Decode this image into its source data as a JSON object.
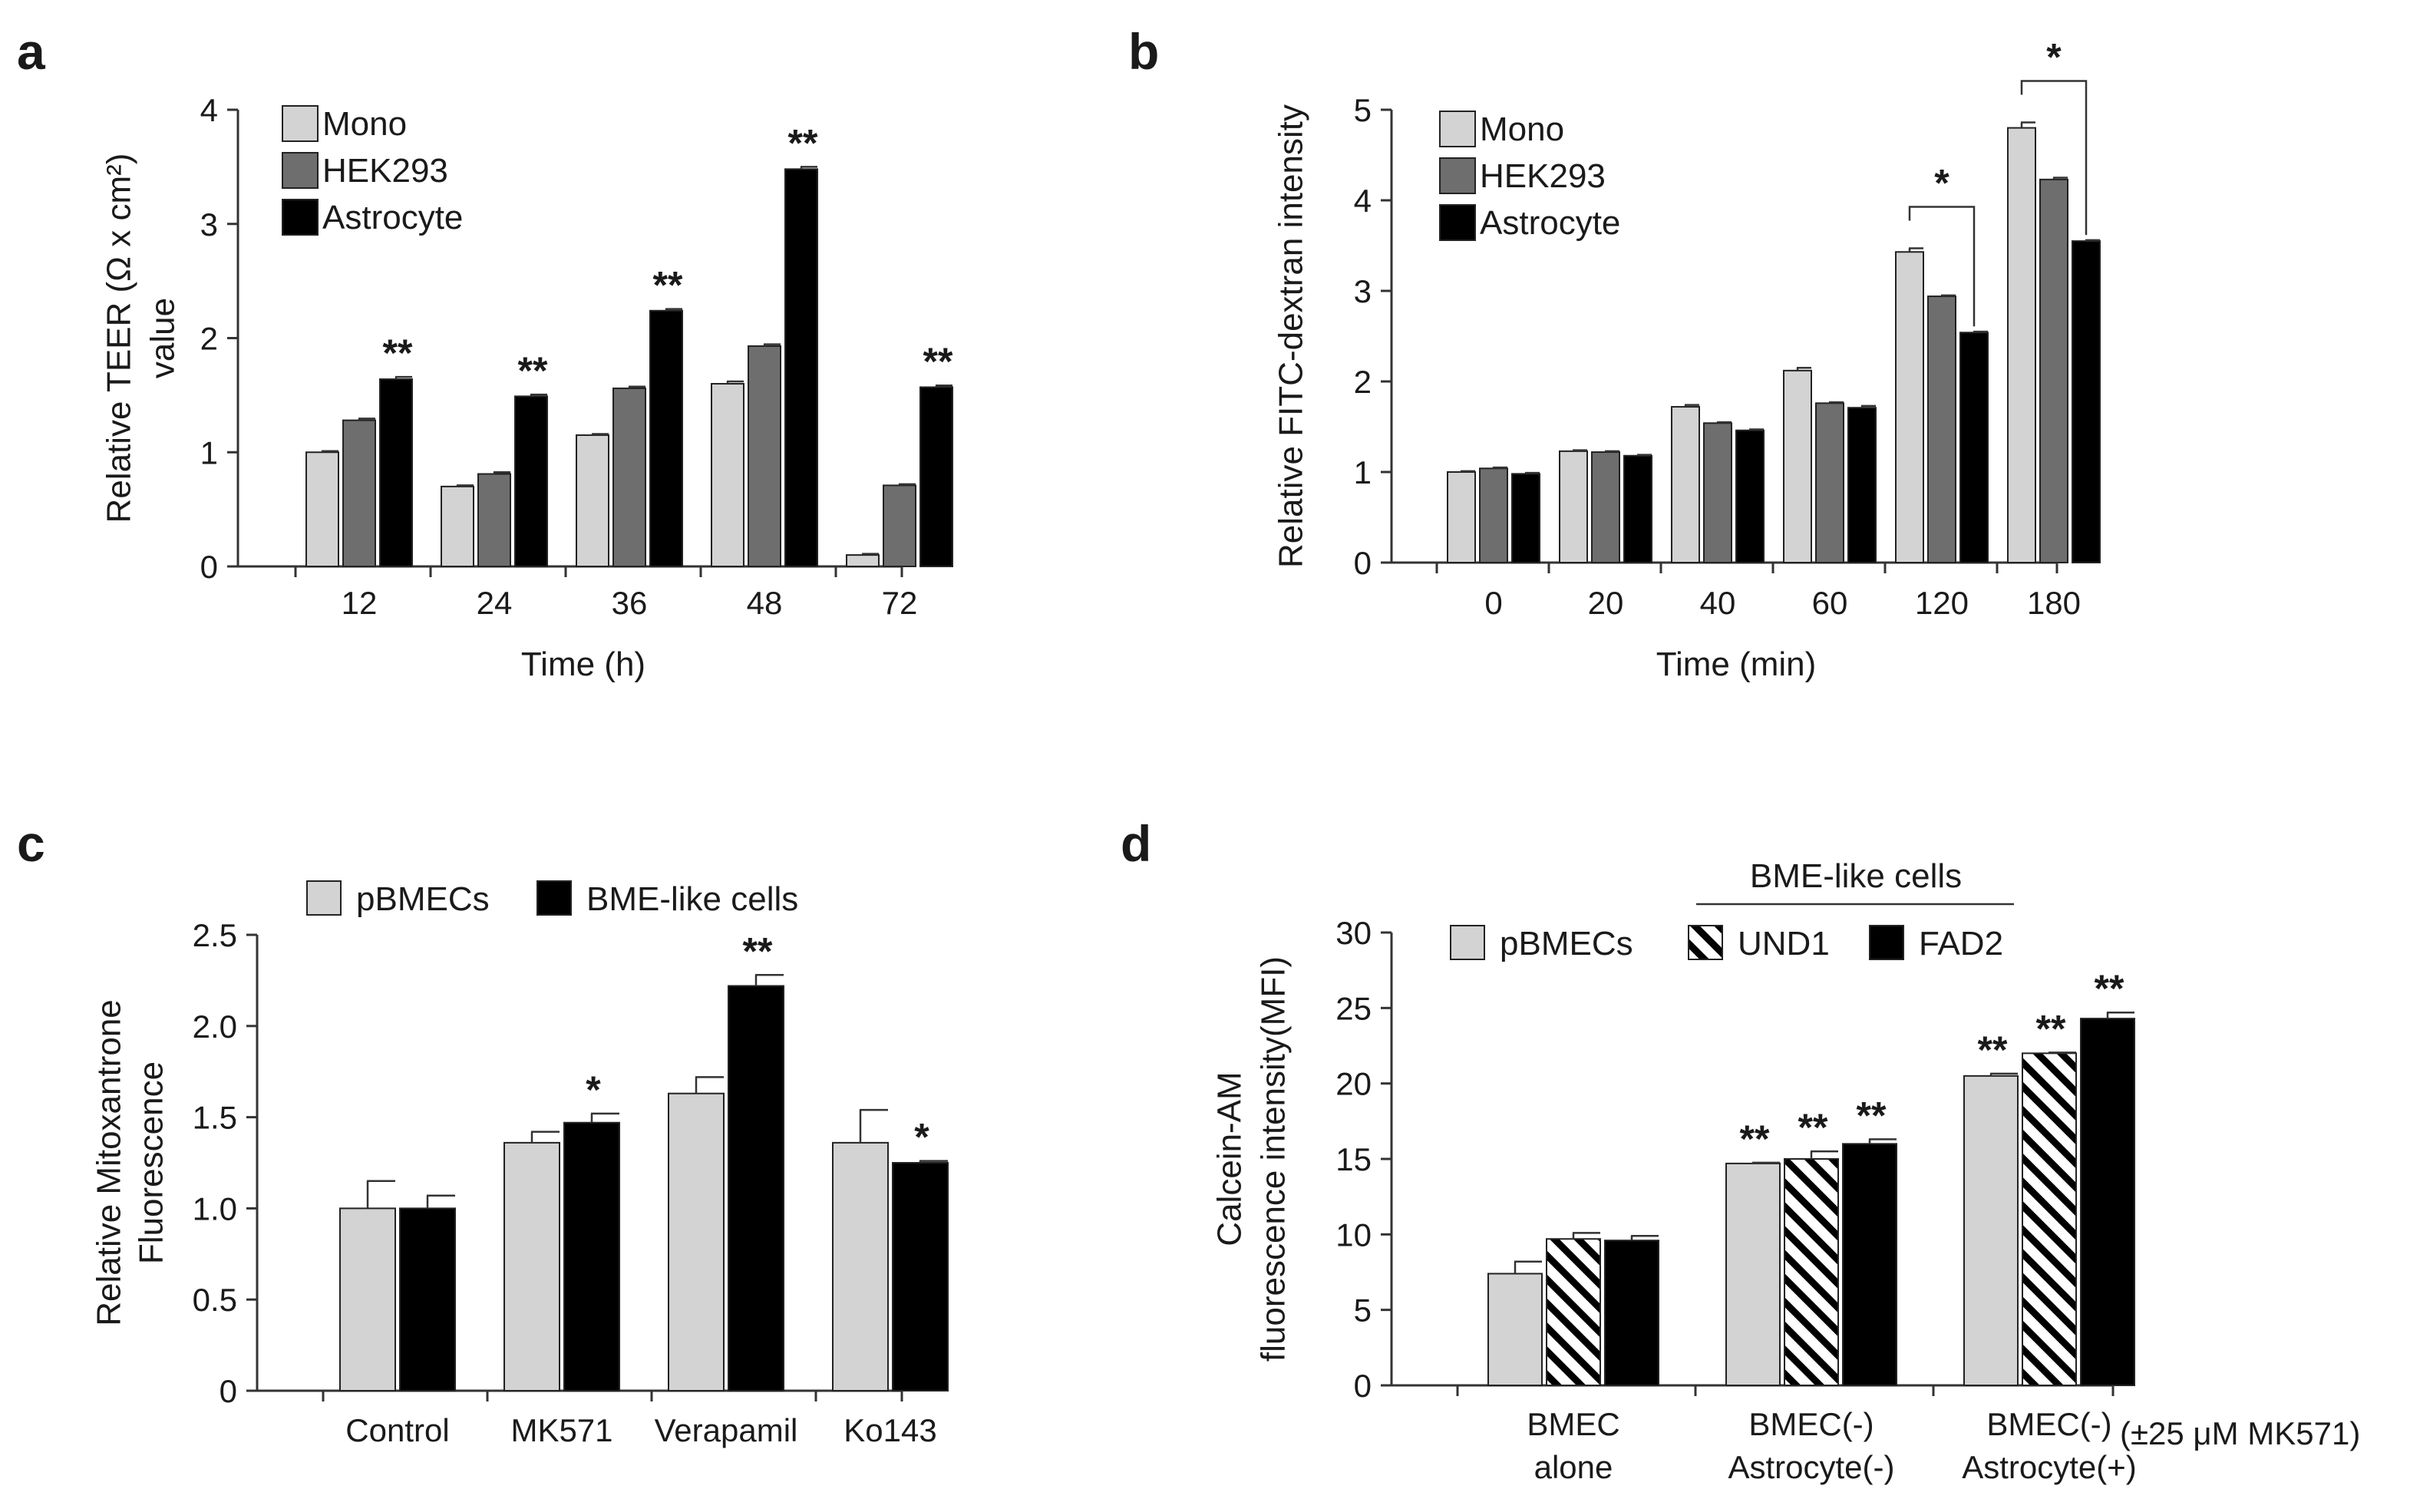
{
  "colors": {
    "mono": "#d3d3d3",
    "hek": "#6e6e6e",
    "astro": "#000000",
    "und1_stripe": "#000000",
    "axis": "#333333"
  },
  "chart_data": [
    {
      "panel": "a",
      "type": "bar",
      "title": "",
      "xlabel": "Time (h)",
      "ylabel_lines": [
        "Relative TEER (Ω x cm²)",
        "value"
      ],
      "ylim": [
        0,
        4
      ],
      "yticks": [
        "0",
        "1",
        "2",
        "3",
        "4"
      ],
      "categories": [
        "12",
        "24",
        "36",
        "48",
        "72"
      ],
      "series": [
        {
          "name": "Mono",
          "values": [
            1.0,
            0.7,
            1.15,
            1.6,
            0.1
          ],
          "errors": [
            0.01,
            0.01,
            0.01,
            0.02,
            0.01
          ]
        },
        {
          "name": "HEK293",
          "values": [
            1.28,
            0.81,
            1.56,
            1.93,
            0.71
          ],
          "errors": [
            0.015,
            0.015,
            0.015,
            0.015,
            0.01
          ]
        },
        {
          "name": "Astrocyte",
          "values": [
            1.64,
            1.49,
            2.24,
            3.48,
            1.57
          ],
          "errors": [
            0.02,
            0.015,
            0.015,
            0.02,
            0.015
          ]
        }
      ],
      "annotations": [
        "**",
        "**",
        "**",
        "**",
        "**"
      ],
      "legend_position": "top-left"
    },
    {
      "panel": "b",
      "type": "bar",
      "title": "",
      "xlabel": "Time (min)",
      "ylabel_lines": [
        "Relative FITC-dextran intensity"
      ],
      "ylim": [
        0,
        5
      ],
      "yticks": [
        "0",
        "1",
        "2",
        "3",
        "4",
        "5"
      ],
      "categories": [
        "0",
        "20",
        "40",
        "60",
        "120",
        "180"
      ],
      "series": [
        {
          "name": "Mono",
          "values": [
            1.0,
            1.23,
            1.72,
            2.12,
            3.43,
            4.8
          ],
          "errors": [
            0.01,
            0.01,
            0.02,
            0.03,
            0.04,
            0.06
          ]
        },
        {
          "name": "HEK293",
          "values": [
            1.04,
            1.22,
            1.54,
            1.76,
            2.94,
            4.23
          ],
          "errors": [
            0.01,
            0.01,
            0.01,
            0.01,
            0.01,
            0.02
          ]
        },
        {
          "name": "Astrocyte",
          "values": [
            0.98,
            1.18,
            1.46,
            1.71,
            2.54,
            3.55
          ],
          "errors": [
            0.01,
            0.01,
            0.01,
            0.02,
            0.01,
            0.01
          ]
        }
      ],
      "brackets": [
        {
          "category": "120",
          "label": "*"
        },
        {
          "category": "180",
          "label": "*"
        }
      ],
      "legend_position": "top-left"
    },
    {
      "panel": "c",
      "type": "bar",
      "title": "",
      "xlabel": "",
      "ylabel_lines": [
        "Relative Mitoxantrone",
        "Fluorescence"
      ],
      "ylim": [
        0,
        2.5
      ],
      "yticks": [
        "0",
        "0.5",
        "1.0",
        "1.5",
        "2.0",
        "2.5"
      ],
      "categories": [
        "Control",
        "MK571",
        "Verapamil",
        "Ko143"
      ],
      "series": [
        {
          "name": "pBMECs",
          "values": [
            1.0,
            1.36,
            1.63,
            1.36
          ],
          "errors": [
            0.15,
            0.06,
            0.09,
            0.18
          ]
        },
        {
          "name": "BME-like cells",
          "values": [
            1.0,
            1.47,
            2.22,
            1.25
          ],
          "errors": [
            0.07,
            0.05,
            0.06,
            0.01
          ]
        }
      ],
      "annotations": [
        "",
        "*",
        "**",
        "*"
      ],
      "legend_position": "top"
    },
    {
      "panel": "d",
      "type": "bar",
      "title": "",
      "xlabel": "",
      "ylabel_lines": [
        "Calcein-AM",
        "fluorescence intensity(MFI)"
      ],
      "ylim": [
        0,
        30
      ],
      "yticks": [
        "0",
        "5",
        "10",
        "15",
        "20",
        "25",
        "30"
      ],
      "categories": [
        [
          "BMEC",
          "alone"
        ],
        [
          "BMEC(-)",
          "Astrocyte(-)"
        ],
        [
          "BMEC(-)",
          "Astrocyte(+)"
        ]
      ],
      "series": [
        {
          "name": "pBMECs",
          "values": [
            7.4,
            14.7,
            20.5
          ],
          "errors": [
            0.8,
            0.05,
            0.15
          ]
        },
        {
          "name": "UND1",
          "values": [
            9.7,
            15.0,
            22.0
          ],
          "errors": [
            0.4,
            0.5,
            0.05
          ]
        },
        {
          "name": "FAD2",
          "values": [
            9.6,
            16.0,
            24.3
          ],
          "errors": [
            0.3,
            0.3,
            0.4
          ]
        }
      ],
      "annotations": [
        [
          "",
          "",
          ""
        ],
        [
          "**",
          "**",
          "**"
        ],
        [
          "**",
          "**",
          "**"
        ]
      ],
      "group_label": "BME-like cells",
      "side_note": "(±25 μM MK571)",
      "legend_position": "top"
    }
  ]
}
